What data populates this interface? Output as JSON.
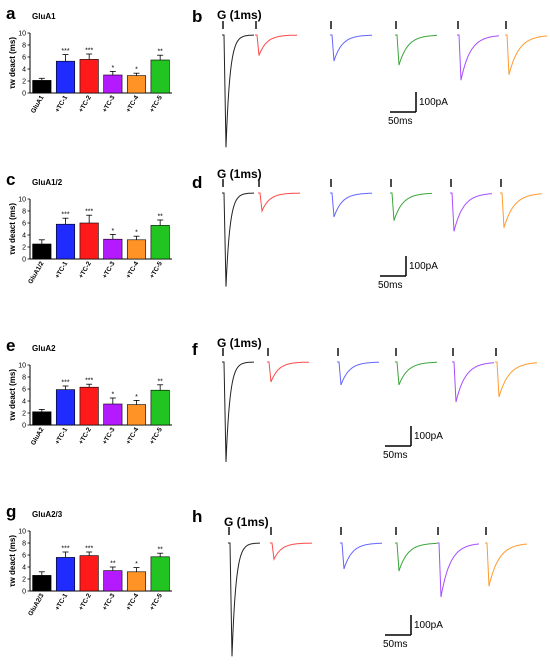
{
  "colors": {
    "control": "#000000",
    "TC-1": "#1f2bff",
    "TC-2": "#ff1a1a",
    "TC-3": "#b31aff",
    "TC-4": "#ff9326",
    "TC-5": "#22c422",
    "trace_control": "#222222",
    "trace_tc1": "#ff4a4a",
    "trace_tc2": "#6464ff",
    "trace_tc3": "#3aa63a",
    "trace_tc4": "#a64dff",
    "trace_tc5": "#ff9a2e"
  },
  "chart_data": [
    {
      "type": "bar",
      "panel_letter": "a",
      "title": "GluA1",
      "ylabel": "τw deact (ms)",
      "ylim": [
        0,
        10
      ],
      "yticks": [
        "0",
        "2",
        "4",
        "6",
        "8",
        "10"
      ],
      "categories": [
        "GluA1",
        "+TC-1",
        "+TC-2",
        "+TC-3",
        "+TC-4",
        "+TC-5"
      ],
      "values": [
        2.1,
        5.3,
        5.6,
        3.0,
        2.9,
        5.5
      ],
      "errors": [
        0.35,
        1.1,
        0.9,
        0.6,
        0.4,
        0.8
      ],
      "significance": [
        "",
        "***",
        "***",
        "*",
        "*",
        "**"
      ]
    },
    {
      "type": "bar",
      "panel_letter": "c",
      "title": "GluA1/2",
      "ylabel": "τw deact (ms)",
      "ylim": [
        0,
        10
      ],
      "yticks": [
        "0",
        "2",
        "4",
        "6",
        "8",
        "10"
      ],
      "categories": [
        "GluA1/2",
        "+TC-1",
        "+TC-2",
        "+TC-3",
        "+TC-4",
        "+TC-5"
      ],
      "values": [
        2.5,
        5.8,
        6.0,
        3.3,
        3.2,
        5.6
      ],
      "errors": [
        0.7,
        1.0,
        1.3,
        0.8,
        0.6,
        0.9
      ],
      "significance": [
        "",
        "***",
        "***",
        "*",
        "*",
        "**"
      ]
    },
    {
      "type": "bar",
      "panel_letter": "e",
      "title": "GluA2",
      "ylabel": "τw deact (ms)",
      "ylim": [
        0,
        10
      ],
      "yticks": [
        "0",
        "2",
        "4",
        "6",
        "8",
        "10"
      ],
      "categories": [
        "GluA2",
        "+TC-1",
        "+TC-2",
        "+TC-3",
        "+TC-4",
        "+TC-5"
      ],
      "values": [
        2.2,
        5.9,
        6.3,
        3.5,
        3.4,
        5.8
      ],
      "errors": [
        0.4,
        0.6,
        0.5,
        1.0,
        0.7,
        0.9
      ],
      "significance": [
        "",
        "***",
        "***",
        "*",
        "*",
        "**"
      ]
    },
    {
      "type": "bar",
      "panel_letter": "g",
      "title": "GluA2/3",
      "ylabel": "τw deact (ms)",
      "ylim": [
        0,
        10
      ],
      "yticks": [
        "0",
        "2",
        "4",
        "6",
        "8",
        "10"
      ],
      "categories": [
        "GluA2/3",
        "+TC-1",
        "+TC-2",
        "+TC-3",
        "+TC-4",
        "+TC-5"
      ],
      "values": [
        2.6,
        5.6,
        5.9,
        3.4,
        3.2,
        5.7
      ],
      "errors": [
        0.6,
        0.9,
        0.6,
        0.6,
        0.7,
        0.6
      ],
      "significance": [
        "",
        "***",
        "***",
        "**",
        "*",
        "**"
      ]
    },
    {
      "type": "line",
      "panel_letter": "b",
      "stimulus_label": "G (1ms)",
      "scale_y": "100pA",
      "scale_x": "50ms",
      "trace_order": [
        "control",
        "TC-1",
        "TC-2",
        "TC-3",
        "TC-4",
        "TC-5"
      ],
      "peak_amplitude_pA": [
        820,
        150,
        190,
        220,
        330,
        290
      ]
    },
    {
      "type": "line",
      "panel_letter": "d",
      "stimulus_label": "G (1ms)",
      "scale_y": "100pA",
      "scale_x": "50ms",
      "trace_order": [
        "control",
        "TC-1",
        "TC-2",
        "TC-3",
        "TC-4",
        "TC-5"
      ],
      "peak_amplitude_pA": [
        780,
        150,
        200,
        230,
        320,
        290
      ]
    },
    {
      "type": "line",
      "panel_letter": "f",
      "stimulus_label": "G (1ms)",
      "scale_y": "100pA",
      "scale_x": "50ms",
      "trace_order": [
        "control",
        "TC-1",
        "TC-2",
        "TC-3",
        "TC-4",
        "TC-5"
      ],
      "peak_amplitude_pA": [
        1000,
        200,
        230,
        230,
        400,
        350
      ]
    },
    {
      "type": "line",
      "panel_letter": "h",
      "stimulus_label": "G (1ms)",
      "scale_y": "100pA",
      "scale_x": "50ms",
      "trace_order": [
        "control",
        "TC-1",
        "TC-2",
        "TC-3",
        "TC-4",
        "TC-5"
      ],
      "peak_amplitude_pA": [
        1050,
        150,
        240,
        260,
        500,
        400
      ]
    }
  ]
}
